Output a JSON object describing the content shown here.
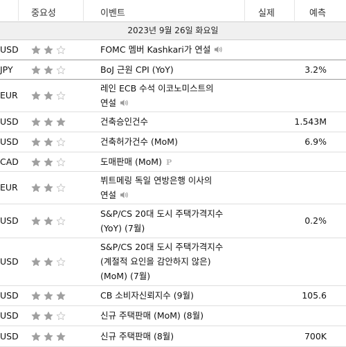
{
  "header": {
    "importance": "중요성",
    "event": "이벤트",
    "actual": "실제",
    "forecast": "예측"
  },
  "date_label": "2023년 9월 26일 화요일",
  "colors": {
    "star_full": "#a0a0a0",
    "star_empty": "#c8c8c8",
    "icon": "#9a9a9a"
  },
  "rows": [
    {
      "currency": "USD",
      "stars": 2,
      "event": "FOMC 멤버 Kashkari가 연설",
      "speech_icon": true,
      "actual": "",
      "forecast": ""
    },
    {
      "currency": "JPY",
      "stars": 2,
      "event": "BoJ 근원 CPI (YoY)",
      "actual": "",
      "forecast": "3.2%"
    },
    {
      "currency": "EUR",
      "stars": 2,
      "event": "레인 ECB 수석 이코노미스트의 연설",
      "speech_icon": true,
      "actual": "",
      "forecast": ""
    },
    {
      "currency": "USD",
      "stars": 3,
      "event": "건축승인건수",
      "actual": "",
      "forecast": "1.543M"
    },
    {
      "currency": "USD",
      "stars": 2,
      "event": "건축허가건수 (MoM)",
      "actual": "",
      "forecast": "6.9%"
    },
    {
      "currency": "CAD",
      "stars": 2,
      "event": "도매판매 (MoM)",
      "preliminary": "P",
      "actual": "",
      "forecast": ""
    },
    {
      "currency": "EUR",
      "stars": 2,
      "event": "뷔트메링 독일 연방은행 이사의 연설",
      "speech_icon": true,
      "actual": "",
      "forecast": ""
    },
    {
      "currency": "USD",
      "stars": 2,
      "event": "S&P/CS 20대 도시 주택가격지수 (YoY) (7월)",
      "actual": "",
      "forecast": "0.2%"
    },
    {
      "currency": "USD",
      "stars": 2,
      "event": "S&P/CS 20대 도시 주택가격지수 (계절적 요인을 감안하지 않은) (MoM) (7월)",
      "actual": "",
      "forecast": ""
    },
    {
      "currency": "USD",
      "stars": 3,
      "event": "CB 소비자신뢰지수 (9월)",
      "actual": "",
      "forecast": "105.6"
    },
    {
      "currency": "USD",
      "stars": 2,
      "event": "신규 주택판매 (MoM) (8월)",
      "actual": "",
      "forecast": ""
    },
    {
      "currency": "USD",
      "stars": 3,
      "event": "신규 주택판매 (8월)",
      "actual": "",
      "forecast": "700K"
    }
  ]
}
